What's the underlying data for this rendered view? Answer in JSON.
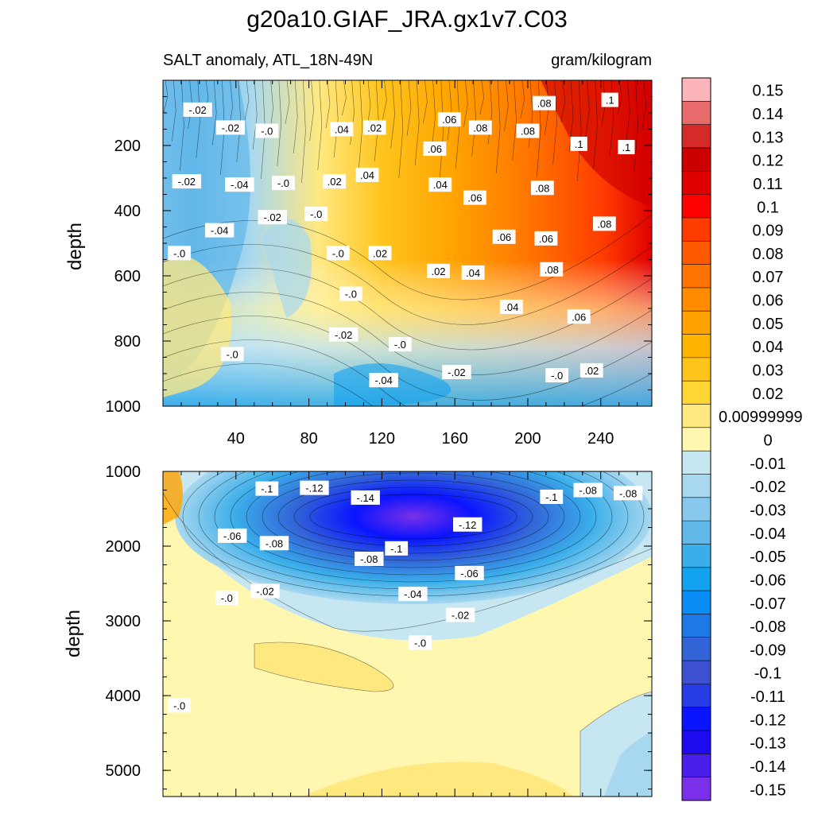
{
  "title": "g20a10.GIAF_JRA.gx1v7.C03",
  "subtitle_left": "SALT anomaly, ATL_18N-49N",
  "subtitle_right": "gram/kilogram",
  "chart_data": {
    "type": "heatmap",
    "colorbar": {
      "labels": [
        "0.15",
        "0.14",
        "0.13",
        "0.12",
        "0.11",
        "0.1",
        "0.09",
        "0.08",
        "0.07",
        "0.06",
        "0.05",
        "0.04",
        "0.03",
        "0.02",
        "0.00999999",
        "0",
        "-0.01",
        "-0.02",
        "-0.03",
        "-0.04",
        "-0.05",
        "-0.06",
        "-0.07",
        "-0.08",
        "-0.09",
        "-0.1",
        "-0.11",
        "-0.12",
        "-0.13",
        "-0.14",
        "-0.15"
      ],
      "colors": [
        "#fbb4b9",
        "#e86a6a",
        "#d42a2a",
        "#cc0000",
        "#e00000",
        "#ff0000",
        "#ff3c00",
        "#ff5a00",
        "#ff7400",
        "#ff8c00",
        "#ffa200",
        "#ffb400",
        "#ffc41c",
        "#ffd633",
        "#ffe880",
        "#fff7b0",
        "#c6e6f2",
        "#a8d8ef",
        "#88c8ec",
        "#63b8ea",
        "#3aaeea",
        "#12a2f0",
        "#0a8ef5",
        "#1e78e6",
        "#3264d8",
        "#3c50d0",
        "#283ce6",
        "#0a14ff",
        "#1e0aee",
        "#4820ea",
        "#7a30e8"
      ]
    },
    "panels": [
      {
        "name": "upper",
        "ylabel": "depth",
        "xlim": [
          0,
          268
        ],
        "ylim": [
          0,
          1000
        ],
        "x_ticks": [
          40,
          80,
          120,
          160,
          200,
          240
        ],
        "x_tick_labels": [
          "40",
          "80",
          "120",
          "160",
          "200",
          "240"
        ],
        "y_ticks": [
          200,
          400,
          600,
          800,
          1000
        ],
        "y_tick_labels": [
          "200",
          "400",
          "600",
          "800",
          "1000"
        ],
        "contour_labels": [
          {
            "text": "-.02",
            "x": 19,
            "y": 90
          },
          {
            "text": "-.02",
            "x": 37,
            "y": 145
          },
          {
            "text": "-.0",
            "x": 57,
            "y": 155
          },
          {
            "text": ".04",
            "x": 98,
            "y": 150
          },
          {
            "text": ".02",
            "x": 116,
            "y": 145
          },
          {
            "text": ".06",
            "x": 157,
            "y": 120
          },
          {
            "text": ".08",
            "x": 174,
            "y": 145
          },
          {
            "text": ".08",
            "x": 200,
            "y": 155
          },
          {
            "text": ".08",
            "x": 209,
            "y": 70
          },
          {
            "text": ".1",
            "x": 245,
            "y": 60
          },
          {
            "text": ".1",
            "x": 228,
            "y": 195
          },
          {
            "text": ".1",
            "x": 254,
            "y": 205
          },
          {
            "text": ".06",
            "x": 149,
            "y": 210
          },
          {
            "text": "-.02",
            "x": 13,
            "y": 310
          },
          {
            "text": "-.04",
            "x": 42,
            "y": 320
          },
          {
            "text": "-.0",
            "x": 66,
            "y": 315
          },
          {
            "text": ".02",
            "x": 94,
            "y": 310
          },
          {
            "text": ".04",
            "x": 112,
            "y": 290
          },
          {
            "text": ".04",
            "x": 152,
            "y": 320
          },
          {
            "text": ".06",
            "x": 171,
            "y": 360
          },
          {
            "text": ".08",
            "x": 208,
            "y": 330
          },
          {
            "text": "-.02",
            "x": 60,
            "y": 420
          },
          {
            "text": "-.0",
            "x": 84,
            "y": 410
          },
          {
            "text": "-.04",
            "x": 31,
            "y": 460
          },
          {
            "text": ".06",
            "x": 187,
            "y": 480
          },
          {
            "text": ".06",
            "x": 210,
            "y": 485
          },
          {
            "text": ".08",
            "x": 242,
            "y": 440
          },
          {
            "text": "-.0",
            "x": 9,
            "y": 530
          },
          {
            "text": "-.0",
            "x": 96,
            "y": 530
          },
          {
            "text": ".02",
            "x": 119,
            "y": 530
          },
          {
            "text": ".02",
            "x": 151,
            "y": 585
          },
          {
            "text": ".04",
            "x": 170,
            "y": 590
          },
          {
            "text": ".08",
            "x": 213,
            "y": 580
          },
          {
            "text": "-.0",
            "x": 103,
            "y": 655
          },
          {
            "text": ".04",
            "x": 191,
            "y": 695
          },
          {
            "text": ".06",
            "x": 228,
            "y": 725
          },
          {
            "text": "-.02",
            "x": 99,
            "y": 780
          },
          {
            "text": "-.0",
            "x": 130,
            "y": 810
          },
          {
            "text": "-.0",
            "x": 38,
            "y": 840
          },
          {
            "text": "-.02",
            "x": 161,
            "y": 895
          },
          {
            "text": "-.0",
            "x": 216,
            "y": 905
          },
          {
            "text": ".02",
            "x": 235,
            "y": 890
          },
          {
            "text": "-.04",
            "x": 121,
            "y": 920
          }
        ]
      },
      {
        "name": "lower",
        "ylabel": "depth",
        "xlim": [
          0,
          268
        ],
        "ylim": [
          1000,
          5350
        ],
        "y_ticks": [
          1000,
          2000,
          3000,
          4000,
          5000
        ],
        "y_tick_labels": [
          "1000",
          "2000",
          "3000",
          "4000",
          "5000"
        ],
        "contour_labels": [
          {
            "text": "-.1",
            "x": 57,
            "y": 1230
          },
          {
            "text": "-.12",
            "x": 83,
            "y": 1220
          },
          {
            "text": "-.14",
            "x": 111,
            "y": 1350
          },
          {
            "text": "-.1",
            "x": 213,
            "y": 1340
          },
          {
            "text": "-.08",
            "x": 233,
            "y": 1250
          },
          {
            "text": "-.08",
            "x": 255,
            "y": 1290
          },
          {
            "text": "-.12",
            "x": 167,
            "y": 1710
          },
          {
            "text": "-.06",
            "x": 38,
            "y": 1860
          },
          {
            "text": "-.08",
            "x": 61,
            "y": 1960
          },
          {
            "text": "-.1",
            "x": 128,
            "y": 2030
          },
          {
            "text": "-.08",
            "x": 113,
            "y": 2170
          },
          {
            "text": "-.06",
            "x": 168,
            "y": 2360
          },
          {
            "text": "-.02",
            "x": 56,
            "y": 2600
          },
          {
            "text": "-.0",
            "x": 35,
            "y": 2690
          },
          {
            "text": "-.04",
            "x": 137,
            "y": 2640
          },
          {
            "text": "-.02",
            "x": 163,
            "y": 2920
          },
          {
            "text": "-.0",
            "x": 141,
            "y": 3290
          },
          {
            "text": "-.0",
            "x": 9,
            "y": 4130
          }
        ]
      }
    ]
  }
}
